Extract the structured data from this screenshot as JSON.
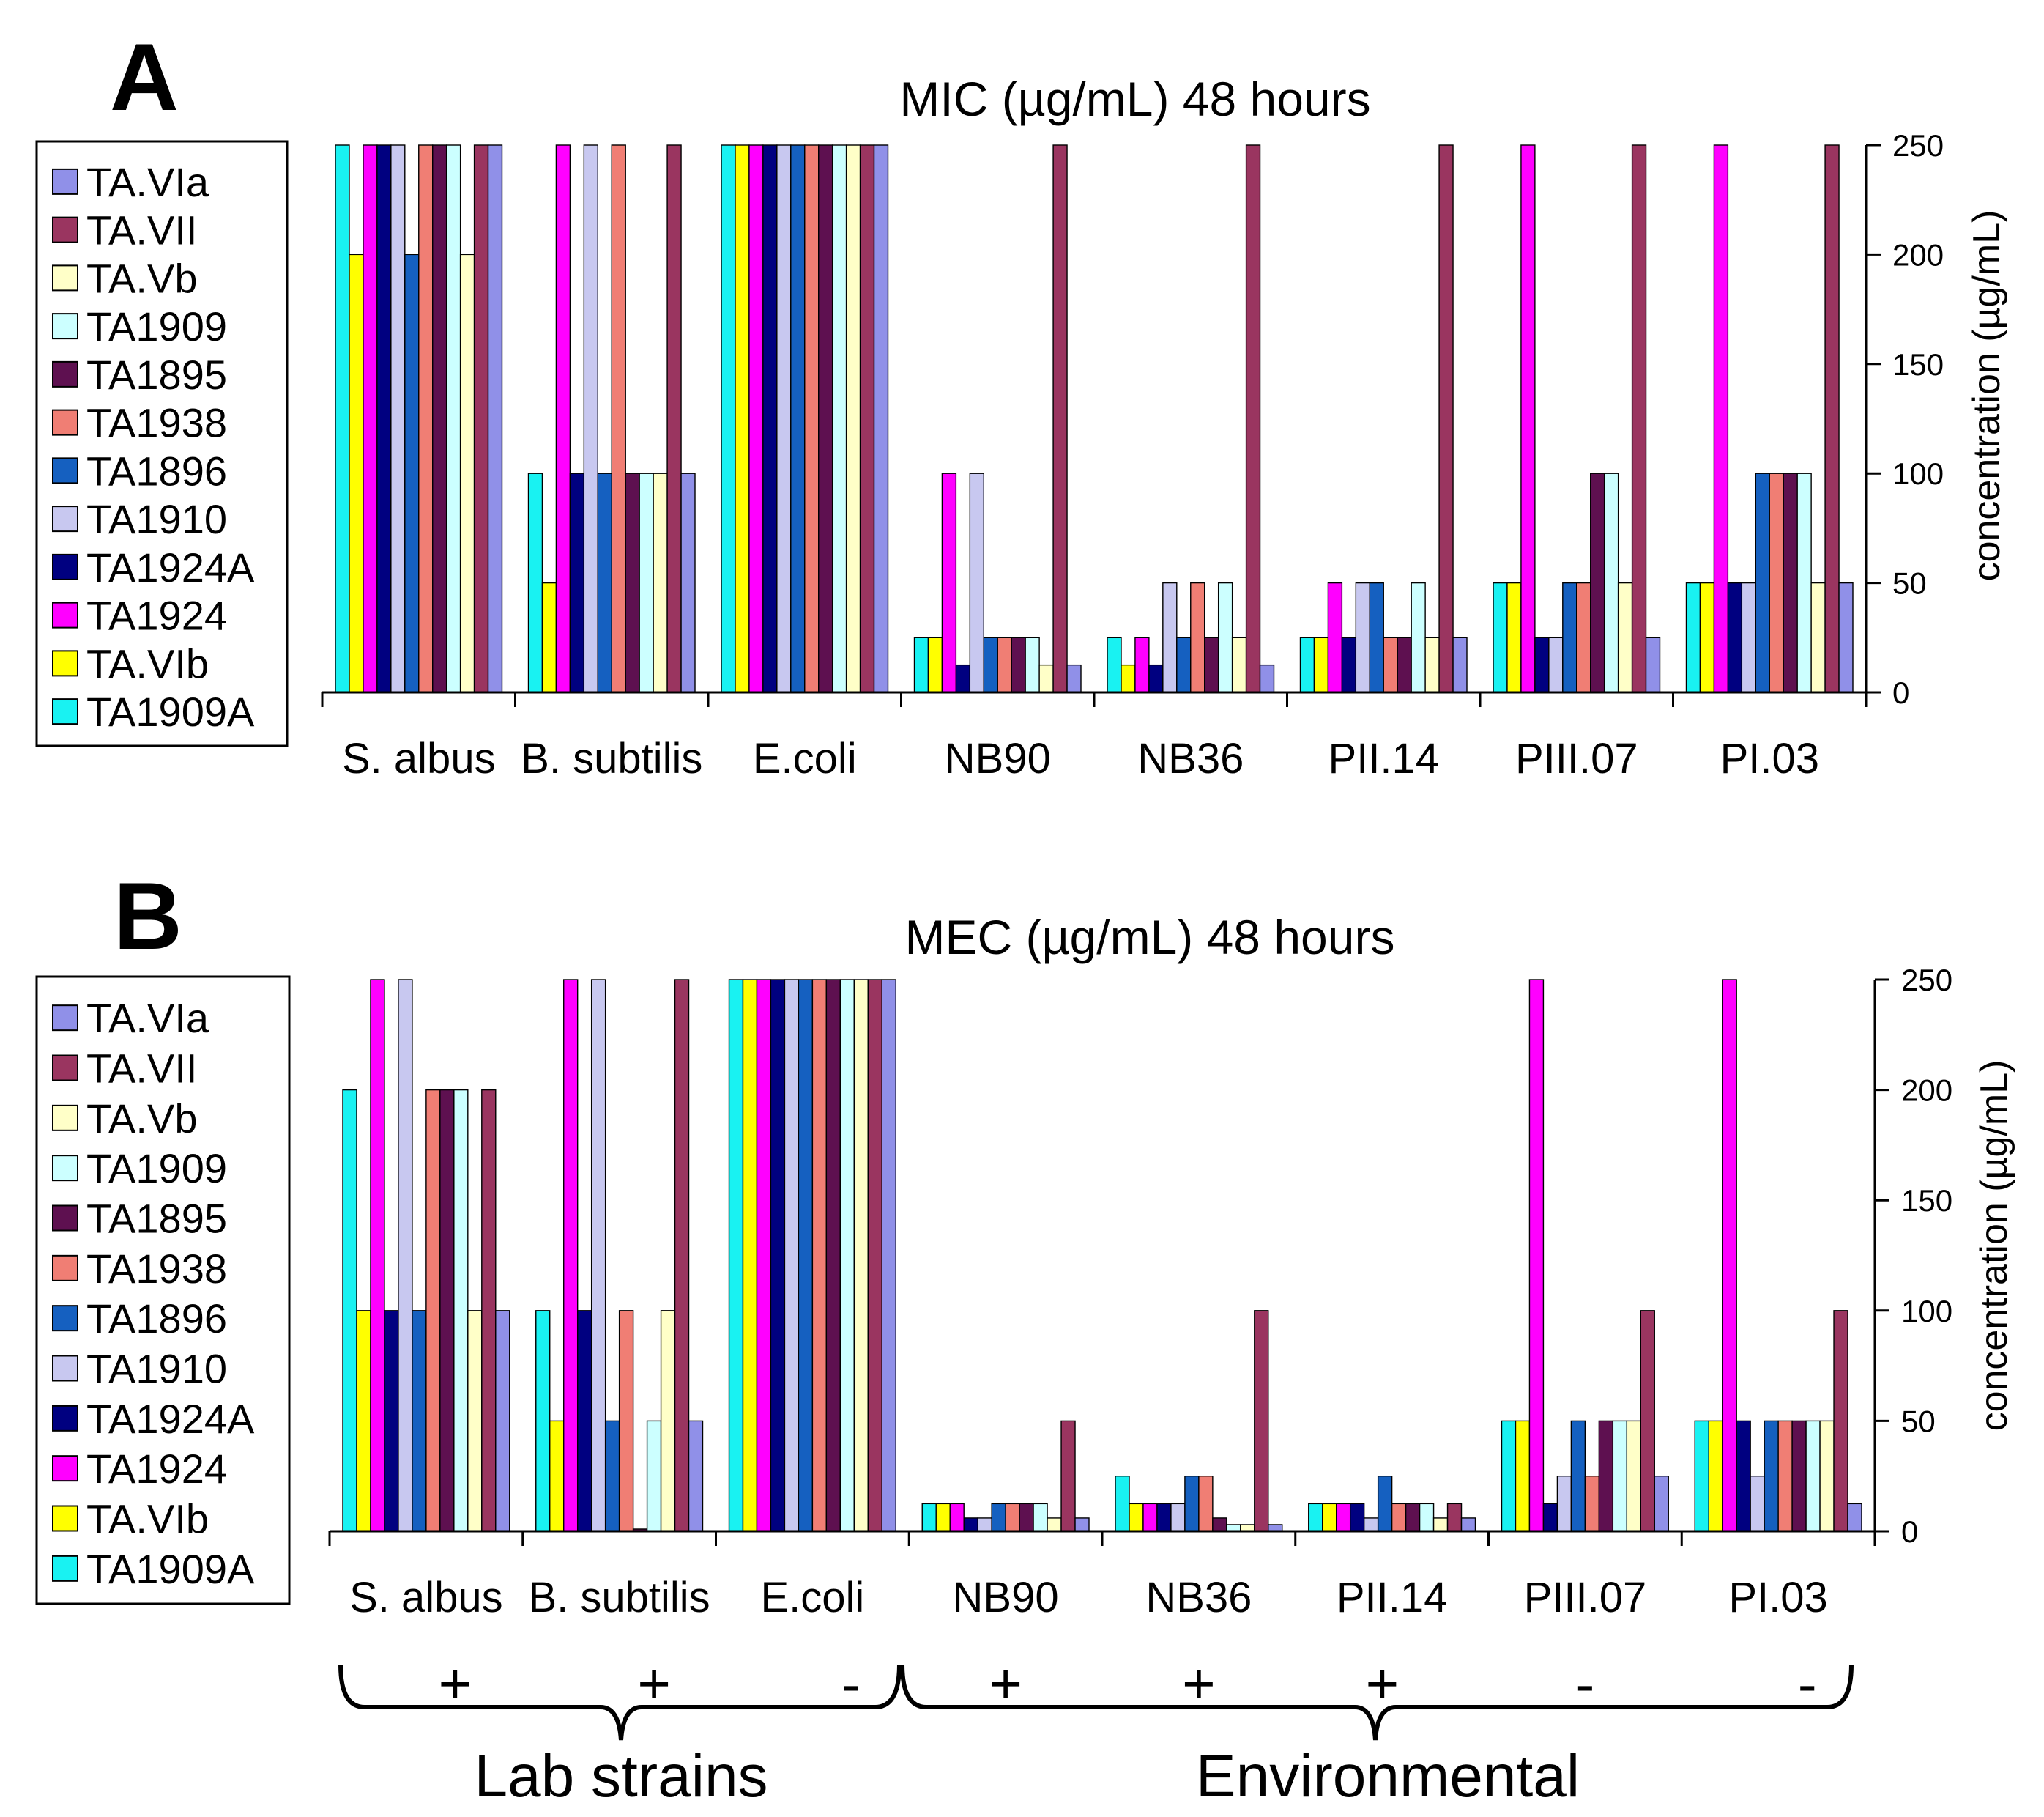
{
  "panels": [
    "A",
    "B"
  ],
  "series_names": [
    "TA.VIa",
    "TA.VII",
    "TA.Vb",
    "TA1909",
    "TA1895",
    "TA1938",
    "TA1896",
    "TA1910",
    "TA1924A",
    "TA1924",
    "TA.VIb",
    "TA1909A"
  ],
  "series_colors": {
    "TA1909A": "#19F2F2",
    "TA.VIb": "#FFFF00",
    "TA1924": "#FF00FF",
    "TA1924A": "#000080",
    "TA1910": "#C8C8F0",
    "TA1896": "#1560C0",
    "TA1938": "#F07E74",
    "TA1895": "#5E1050",
    "TA1909": "#CCFFFF",
    "TA.Vb": "#FFFFC8",
    "TA.VII": "#9A3560",
    "TA.VIa": "#9090E8"
  },
  "bar_order": [
    "TA1909A",
    "TA.VIb",
    "TA1924",
    "TA1924A",
    "TA1910",
    "TA1896",
    "TA1938",
    "TA1895",
    "TA1909",
    "TA.Vb",
    "TA.VII",
    "TA.VIa"
  ],
  "chart_data": [
    {
      "type": "bar",
      "title": "MIC (µg/mL) 48 hours",
      "ylabel": "concentration (µg/mL)",
      "ylim": [
        0,
        250
      ],
      "yticks": [
        0,
        50,
        100,
        150,
        200,
        250
      ],
      "categories": [
        "S. albus",
        "B. subtilis",
        "E.coli",
        "NB90",
        "NB36",
        "PII.14",
        "PIII.07",
        "PI.03"
      ],
      "series": [
        {
          "name": "TA1909A",
          "values": [
            250,
            100,
            250,
            25,
            25,
            25,
            50,
            50
          ]
        },
        {
          "name": "TA.VIb",
          "values": [
            200,
            50,
            250,
            25,
            12.5,
            25,
            50,
            50
          ]
        },
        {
          "name": "TA1924",
          "values": [
            250,
            250,
            250,
            100,
            25,
            50,
            250,
            250
          ]
        },
        {
          "name": "TA1924A",
          "values": [
            250,
            100,
            250,
            12.5,
            12.5,
            25,
            25,
            50
          ]
        },
        {
          "name": "TA1910",
          "values": [
            250,
            250,
            250,
            100,
            50,
            50,
            25,
            50
          ]
        },
        {
          "name": "TA1896",
          "values": [
            200,
            100,
            250,
            25,
            25,
            50,
            50,
            100
          ]
        },
        {
          "name": "TA1938",
          "values": [
            250,
            250,
            250,
            25,
            50,
            25,
            50,
            100
          ]
        },
        {
          "name": "TA1895",
          "values": [
            250,
            100,
            250,
            25,
            25,
            25,
            100,
            100
          ]
        },
        {
          "name": "TA1909",
          "values": [
            250,
            100,
            250,
            25,
            50,
            50,
            100,
            100
          ]
        },
        {
          "name": "TA.Vb",
          "values": [
            200,
            100,
            250,
            12.5,
            25,
            25,
            50,
            50
          ]
        },
        {
          "name": "TA.VII",
          "values": [
            250,
            250,
            250,
            250,
            250,
            250,
            250,
            250
          ]
        },
        {
          "name": "TA.VIa",
          "values": [
            250,
            100,
            250,
            12.5,
            12.5,
            25,
            25,
            50
          ]
        }
      ]
    },
    {
      "type": "bar",
      "title": "MEC (µg/mL) 48 hours",
      "ylabel": "concentration (µg/mL)",
      "ylim": [
        0,
        250
      ],
      "yticks": [
        0,
        50,
        100,
        150,
        200,
        250
      ],
      "categories": [
        "S. albus",
        "B. subtilis",
        "E.coli",
        "NB90",
        "NB36",
        "PII.14",
        "PIII.07",
        "PI.03"
      ],
      "series": [
        {
          "name": "TA1909A",
          "values": [
            200,
            100,
            250,
            12.5,
            25,
            12.5,
            50,
            50
          ]
        },
        {
          "name": "TA.VIb",
          "values": [
            100,
            50,
            250,
            12.5,
            12.5,
            12.5,
            50,
            50
          ]
        },
        {
          "name": "TA1924",
          "values": [
            250,
            250,
            250,
            12.5,
            12.5,
            12.5,
            250,
            250
          ]
        },
        {
          "name": "TA1924A",
          "values": [
            100,
            100,
            250,
            6,
            12.5,
            12.5,
            12.5,
            50
          ]
        },
        {
          "name": "TA1910",
          "values": [
            250,
            250,
            250,
            6,
            12.5,
            6,
            25,
            25
          ]
        },
        {
          "name": "TA1896",
          "values": [
            100,
            50,
            250,
            12.5,
            25,
            25,
            50,
            50
          ]
        },
        {
          "name": "TA1938",
          "values": [
            200,
            100,
            250,
            12.5,
            25,
            12.5,
            25,
            50
          ]
        },
        {
          "name": "TA1895",
          "values": [
            200,
            1,
            250,
            12.5,
            6,
            12.5,
            50,
            50
          ]
        },
        {
          "name": "TA1909",
          "values": [
            200,
            50,
            250,
            12.5,
            3,
            12.5,
            50,
            50
          ]
        },
        {
          "name": "TA.Vb",
          "values": [
            100,
            100,
            250,
            6,
            3,
            6,
            50,
            50
          ]
        },
        {
          "name": "TA.VII",
          "values": [
            200,
            250,
            250,
            50,
            100,
            12.5,
            100,
            100
          ]
        },
        {
          "name": "TA.VIa",
          "values": [
            100,
            50,
            250,
            6,
            3,
            6,
            25,
            12.5
          ]
        }
      ]
    }
  ],
  "gram_signs": [
    "+",
    "+",
    "-",
    "+",
    "+",
    "+",
    "-",
    "-"
  ],
  "groups": [
    "Lab strains",
    "Environmental"
  ]
}
